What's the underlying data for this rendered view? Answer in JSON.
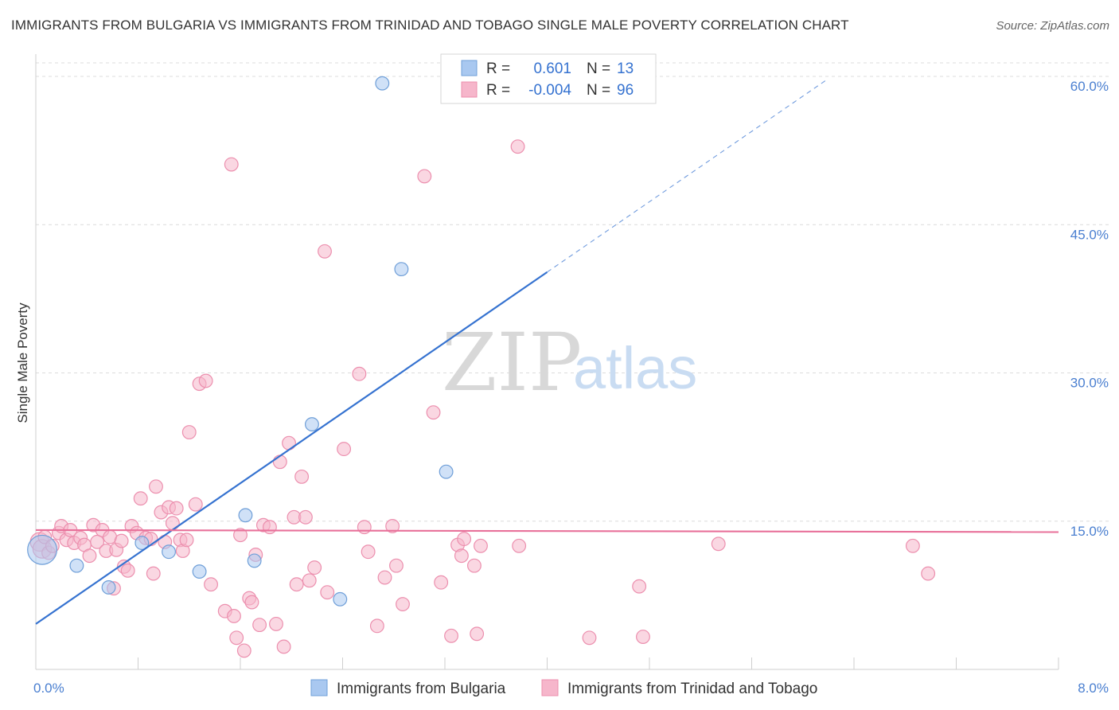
{
  "title": "IMMIGRANTS FROM BULGARIA VS IMMIGRANTS FROM TRINIDAD AND TOBAGO SINGLE MALE POVERTY CORRELATION CHART",
  "source": "Source: ZipAtlas.com",
  "watermark": {
    "zip": "ZIP",
    "atlas": "atlas"
  },
  "legend": {
    "rows": [
      {
        "r_label": "R =",
        "r_value": "0.601",
        "n_label": "N =",
        "n_value": "13",
        "color": "#a9c8f0"
      },
      {
        "r_label": "R =",
        "r_value": "-0.004",
        "n_label": "N =",
        "n_value": "96",
        "color": "#f6b6cb"
      }
    ]
  },
  "bottom_legend": [
    {
      "label": "Immigrants from Bulgaria",
      "color": "#a9c8f0"
    },
    {
      "label": "Immigrants from Trinidad and Tobago",
      "color": "#f6b6cb"
    }
  ],
  "chart_data": {
    "type": "scatter",
    "title": "IMMIGRANTS FROM BULGARIA VS IMMIGRANTS FROM TRINIDAD AND TOBAGO SINGLE MALE POVERTY CORRELATION CHART",
    "xlabel": "",
    "ylabel": "Single Male Poverty",
    "xlim": [
      0,
      8
    ],
    "ylim": [
      0,
      60
    ],
    "x_tick_labels": [
      "0.0%",
      "8.0%"
    ],
    "y_ticks": [
      15,
      30,
      45,
      60
    ],
    "y_tick_labels": [
      "15.0%",
      "30.0%",
      "45.0%",
      "60.0%"
    ],
    "grid": true,
    "legend_position": "top-center",
    "series": [
      {
        "name": "Immigrants from Bulgaria",
        "color": "#a9c8f0",
        "stroke": "#6f9fd8",
        "trend": {
          "x0": 0,
          "y0": 4.6,
          "x1": 4.0,
          "y1": 40.2,
          "color": "#3572d0",
          "dashed_to_x": 6.2
        },
        "points": [
          [
            0.05,
            12.1,
            22
          ],
          [
            0.32,
            10.5,
            10
          ],
          [
            0.57,
            8.3,
            10
          ],
          [
            0.83,
            12.8,
            10
          ],
          [
            1.04,
            11.9,
            10
          ],
          [
            1.28,
            9.9,
            10
          ],
          [
            1.64,
            15.6,
            10
          ],
          [
            1.71,
            11.0,
            10
          ],
          [
            2.16,
            24.8,
            10
          ],
          [
            2.38,
            7.1,
            10
          ],
          [
            2.71,
            59.3,
            10
          ],
          [
            2.86,
            40.5,
            10
          ],
          [
            3.21,
            20.0,
            10
          ]
        ]
      },
      {
        "name": "Immigrants from Trinidad and Tobago",
        "color": "#f6b6cb",
        "stroke": "#ec8fae",
        "trend": {
          "x0": 0,
          "y0": 14.1,
          "x1": 8.0,
          "y1": 13.9,
          "color": "#e8719a"
        },
        "points": [
          [
            0.03,
            12.9,
            14
          ],
          [
            0.05,
            12.2,
            14
          ],
          [
            0.07,
            13.4,
            10
          ],
          [
            0.1,
            11.8,
            10
          ],
          [
            0.13,
            12.5,
            10
          ],
          [
            0.18,
            13.8,
            10
          ],
          [
            0.2,
            14.5,
            10
          ],
          [
            0.24,
            13.1,
            10
          ],
          [
            0.27,
            14.1,
            10
          ],
          [
            0.3,
            12.8,
            10
          ],
          [
            0.35,
            13.3,
            10
          ],
          [
            0.38,
            12.6,
            10
          ],
          [
            0.42,
            11.5,
            10
          ],
          [
            0.45,
            14.6,
            10
          ],
          [
            0.48,
            12.9,
            10
          ],
          [
            0.52,
            14.1,
            10
          ],
          [
            0.55,
            12.0,
            10
          ],
          [
            0.58,
            13.4,
            10
          ],
          [
            0.61,
            8.2,
            10
          ],
          [
            0.63,
            12.1,
            10
          ],
          [
            0.67,
            13.0,
            10
          ],
          [
            0.69,
            10.4,
            10
          ],
          [
            0.72,
            10.0,
            10
          ],
          [
            0.75,
            14.5,
            10
          ],
          [
            0.79,
            13.8,
            10
          ],
          [
            0.82,
            17.3,
            10
          ],
          [
            0.86,
            13.3,
            10
          ],
          [
            0.9,
            13.2,
            10
          ],
          [
            0.92,
            9.7,
            10
          ],
          [
            0.94,
            18.5,
            10
          ],
          [
            0.98,
            15.9,
            10
          ],
          [
            1.01,
            12.9,
            10
          ],
          [
            1.04,
            16.4,
            10
          ],
          [
            1.07,
            14.8,
            10
          ],
          [
            1.1,
            16.3,
            10
          ],
          [
            1.13,
            13.1,
            10
          ],
          [
            1.15,
            12.0,
            10
          ],
          [
            1.18,
            13.1,
            10
          ],
          [
            1.2,
            24.0,
            10
          ],
          [
            1.25,
            16.7,
            10
          ],
          [
            1.28,
            28.9,
            10
          ],
          [
            1.33,
            29.2,
            10
          ],
          [
            1.37,
            8.6,
            10
          ],
          [
            1.48,
            5.9,
            10
          ],
          [
            1.53,
            51.1,
            10
          ],
          [
            1.55,
            5.4,
            10
          ],
          [
            1.57,
            3.2,
            10
          ],
          [
            1.6,
            13.6,
            10
          ],
          [
            1.63,
            1.9,
            10
          ],
          [
            1.67,
            7.2,
            10
          ],
          [
            1.69,
            6.8,
            10
          ],
          [
            1.72,
            11.6,
            10
          ],
          [
            1.75,
            4.5,
            10
          ],
          [
            1.78,
            14.6,
            10
          ],
          [
            1.83,
            14.4,
            10
          ],
          [
            1.88,
            4.6,
            10
          ],
          [
            1.91,
            21.0,
            10
          ],
          [
            1.94,
            2.3,
            10
          ],
          [
            1.98,
            22.9,
            10
          ],
          [
            2.02,
            15.4,
            10
          ],
          [
            2.04,
            8.6,
            10
          ],
          [
            2.08,
            19.5,
            10
          ],
          [
            2.11,
            15.4,
            10
          ],
          [
            2.14,
            9.0,
            10
          ],
          [
            2.18,
            10.3,
            10
          ],
          [
            2.26,
            42.3,
            10
          ],
          [
            2.28,
            7.8,
            10
          ],
          [
            2.41,
            22.3,
            10
          ],
          [
            2.53,
            29.9,
            10
          ],
          [
            2.57,
            14.4,
            10
          ],
          [
            2.6,
            11.9,
            10
          ],
          [
            2.67,
            4.4,
            10
          ],
          [
            2.73,
            9.3,
            10
          ],
          [
            2.79,
            14.5,
            10
          ],
          [
            2.82,
            10.5,
            10
          ],
          [
            2.87,
            6.6,
            10
          ],
          [
            3.04,
            49.9,
            10
          ],
          [
            3.11,
            26.0,
            10
          ],
          [
            3.17,
            8.8,
            10
          ],
          [
            3.25,
            3.4,
            10
          ],
          [
            3.3,
            12.6,
            10
          ],
          [
            3.33,
            11.5,
            10
          ],
          [
            3.35,
            13.2,
            10
          ],
          [
            3.43,
            10.5,
            10
          ],
          [
            3.45,
            3.6,
            10
          ],
          [
            3.48,
            12.5,
            10
          ],
          [
            3.77,
            52.9,
            10
          ],
          [
            3.78,
            12.5,
            10
          ],
          [
            4.33,
            3.2,
            10
          ],
          [
            4.72,
            8.4,
            10
          ],
          [
            4.75,
            3.3,
            10
          ],
          [
            5.34,
            12.7,
            10
          ],
          [
            6.86,
            12.5,
            10
          ],
          [
            6.98,
            9.7,
            10
          ]
        ]
      }
    ]
  }
}
